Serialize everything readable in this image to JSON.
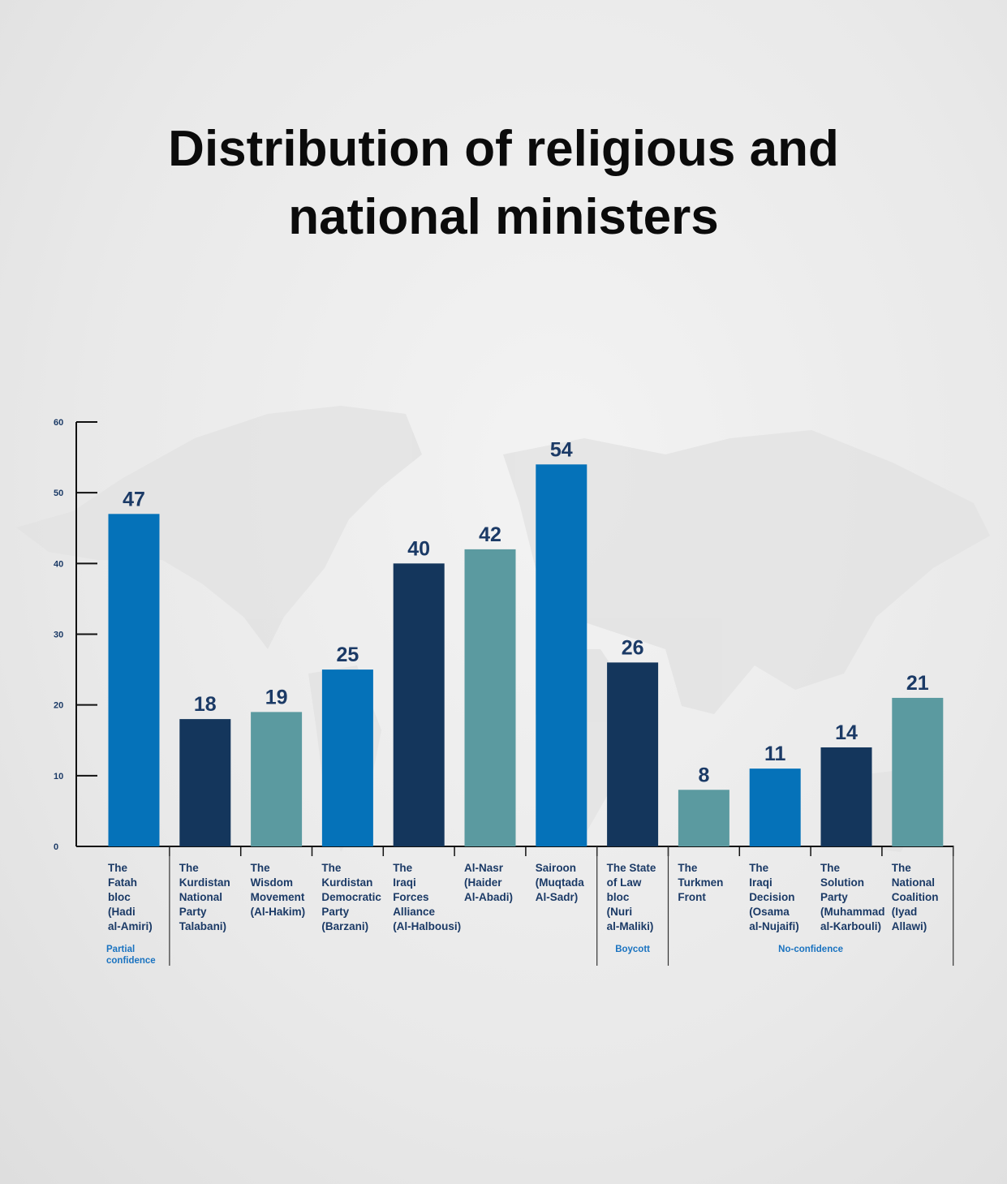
{
  "chart_data": {
    "type": "bar",
    "title": [
      "Distribution of religious and",
      "national ministers"
    ],
    "ylim": [
      0,
      60
    ],
    "yticks": [
      0,
      10,
      20,
      30,
      40,
      50,
      60
    ],
    "xlabel": "",
    "ylabel": "",
    "categories": [
      [
        "The",
        "Fatah",
        "bloc",
        "(Hadi",
        "al-Amiri)"
      ],
      [
        "The",
        "Kurdistan",
        "National",
        "Party",
        "Talabani)"
      ],
      [
        "The",
        "Wisdom",
        "Movement",
        "(Al-Hakim)"
      ],
      [
        "The",
        "Kurdistan",
        "Democratic",
        "Party",
        "(Barzani)"
      ],
      [
        "The",
        "Iraqi",
        "Forces",
        "Alliance",
        "(Al-Halbousi)"
      ],
      [
        "Al-Nasr",
        "(Haider",
        "Al-Abadi)"
      ],
      [
        "Sairoon",
        "(Muqtada",
        "Al-Sadr)"
      ],
      [
        "The State",
        "of Law",
        "bloc",
        "(Nuri",
        "al-Maliki)"
      ],
      [
        "The",
        "Turkmen",
        "Front"
      ],
      [
        "The",
        "Iraqi",
        "Decision",
        "(Osama",
        "al-Nujaifi)"
      ],
      [
        "The",
        "Solution",
        "Party",
        "(Muhammad",
        "al-Karbouli)"
      ],
      [
        "The",
        "National",
        "Coalition",
        "(Iyad",
        "Allawi)"
      ]
    ],
    "values": [
      47,
      18,
      19,
      25,
      40,
      42,
      54,
      26,
      8,
      11,
      14,
      21
    ],
    "bar_colors": [
      "#0572b9",
      "#14365c",
      "#5b9aa0",
      "#0572b9",
      "#14365c",
      "#5b9aa0",
      "#0572b9",
      "#14365c",
      "#5b9aa0",
      "#0572b9",
      "#14365c",
      "#5b9aa0"
    ],
    "groups": [
      {
        "label": [
          "Partial",
          "confidence"
        ],
        "start": 0,
        "end": 0
      },
      {
        "label": [],
        "start": 1,
        "end": 6
      },
      {
        "label": [
          "Boycott"
        ],
        "start": 7,
        "end": 7
      },
      {
        "label": [
          "No-confidence"
        ],
        "start": 8,
        "end": 11
      }
    ]
  }
}
